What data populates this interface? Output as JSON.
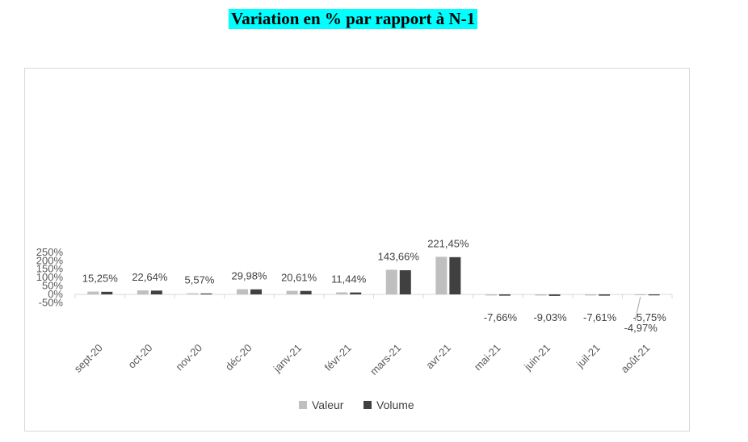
{
  "title": "Variation en % par rapport à N-1",
  "chart_data": {
    "type": "bar",
    "title": "",
    "categories": [
      "sept-20",
      "oct-20",
      "nov-20",
      "déc-20",
      "janv-21",
      "févr-21",
      "mars-21",
      "avr-21",
      "mai-21",
      "juin-21",
      "juil-21",
      "août-21"
    ],
    "series": [
      {
        "name": "Valeur",
        "color": "#bfbfbf",
        "values": [
          16.5,
          23.9,
          6.6,
          30.9,
          21.2,
          12.3,
          146.5,
          223.5,
          -6.5,
          -6.8,
          -6.5,
          -4.97
        ]
      },
      {
        "name": "Volume",
        "color": "#404040",
        "values": [
          15.25,
          22.64,
          5.57,
          29.98,
          20.61,
          11.44,
          143.66,
          221.45,
          -7.66,
          -9.03,
          -7.61,
          -5.75
        ]
      }
    ],
    "data_labels": [
      "15,25%",
      "22,64%",
      "5,57%",
      "29,98%",
      "20,61%",
      "11,44%",
      "143,66%",
      "221,45%",
      "-7,66%",
      "-9,03%",
      "-7,61%",
      "-5,75%"
    ],
    "extra_labels": [
      {
        "category": "août-21",
        "series": "Valeur",
        "text": "-4,97%"
      }
    ],
    "ylim": [
      -50,
      250
    ],
    "yticks": [
      -50,
      0,
      50,
      100,
      150,
      200,
      250
    ],
    "ytick_labels": [
      "-50%",
      "0%",
      "50%",
      "100%",
      "150%",
      "200%",
      "250%"
    ],
    "grid": false,
    "legend": "bottom"
  }
}
